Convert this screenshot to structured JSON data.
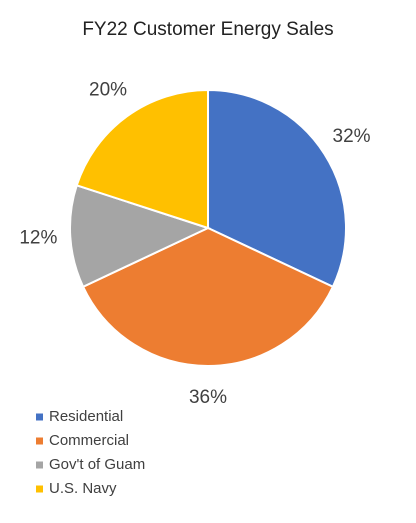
{
  "chart_data": {
    "type": "pie",
    "title": "FY22 Customer Energy Sales",
    "categories": [
      "Residential",
      "Commercial",
      "Gov't of Guam",
      "U.S. Navy"
    ],
    "values": [
      32,
      36,
      12,
      20
    ],
    "value_labels": [
      "32%",
      "36%",
      "12%",
      "20%"
    ],
    "colors": [
      "#4472c4",
      "#ed7d31",
      "#a5a5a5",
      "#ffc000"
    ],
    "legend": "bottom-left"
  }
}
